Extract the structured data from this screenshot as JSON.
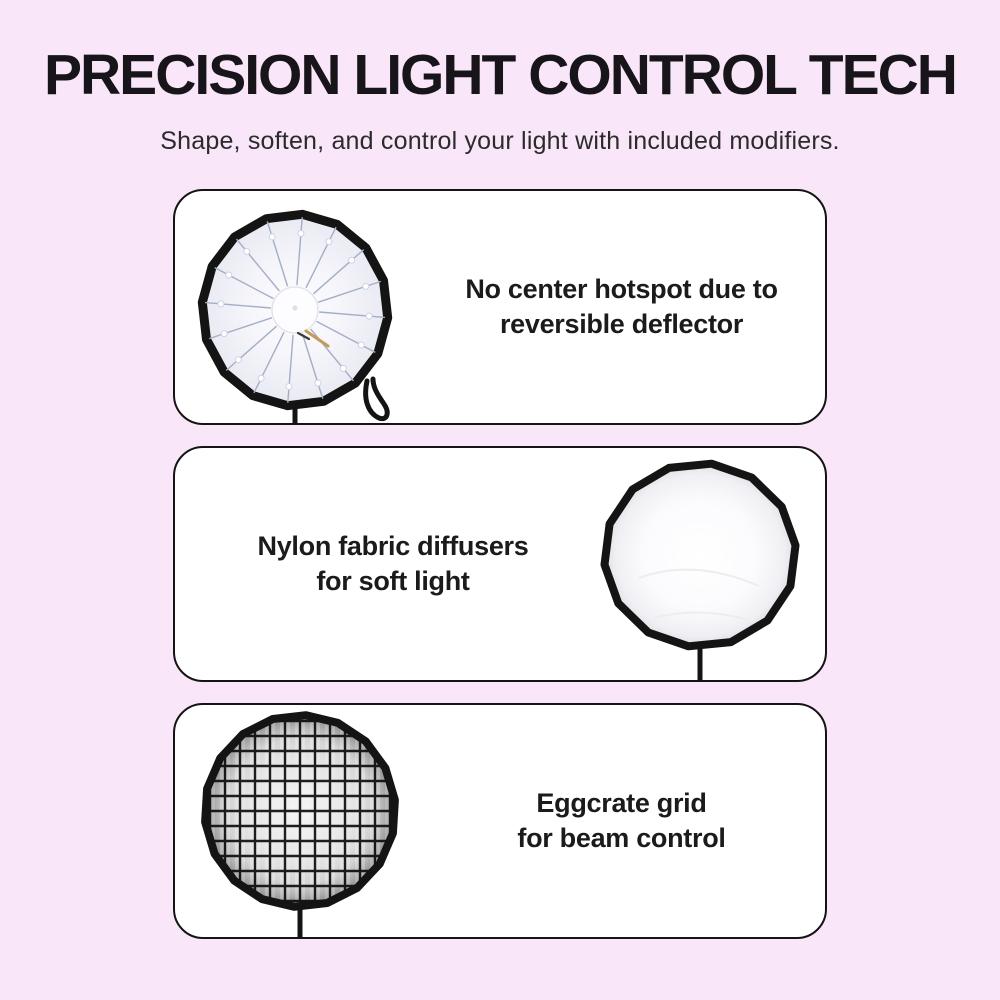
{
  "header": {
    "title": "PRECISION LIGHT CONTROL TECH",
    "subtitle": "Shape, soften, and control your light with included modifiers."
  },
  "cards": [
    {
      "name": "reversible-deflector",
      "line1": "No center hotspot due to",
      "line2": "reversible deflector",
      "image": "parabolic-softbox-open-front-with-deflector"
    },
    {
      "name": "nylon-diffuser",
      "line1": "Nylon fabric diffusers",
      "line2": "for soft light",
      "image": "softbox-with-white-nylon-diffuser"
    },
    {
      "name": "eggcrate-grid",
      "line1": "Eggcrate grid",
      "line2": "for beam control",
      "image": "softbox-with-black-eggcrate-grid"
    }
  ],
  "colors": {
    "background": "#F9E6F8",
    "card_background": "#FFFFFF",
    "card_border": "#141414",
    "title_text": "#17141A",
    "subtitle_text": "#2B2B2B",
    "card_text": "#1B1B1B",
    "softbox_rim": "#141414",
    "softbox_fabric": "#F4F4FA",
    "spoke_rod": "#A3AEC6",
    "gold_accent": "#C49A55",
    "grid_line": "#1E1E1E",
    "grid_cell": "#F2F2F3"
  }
}
